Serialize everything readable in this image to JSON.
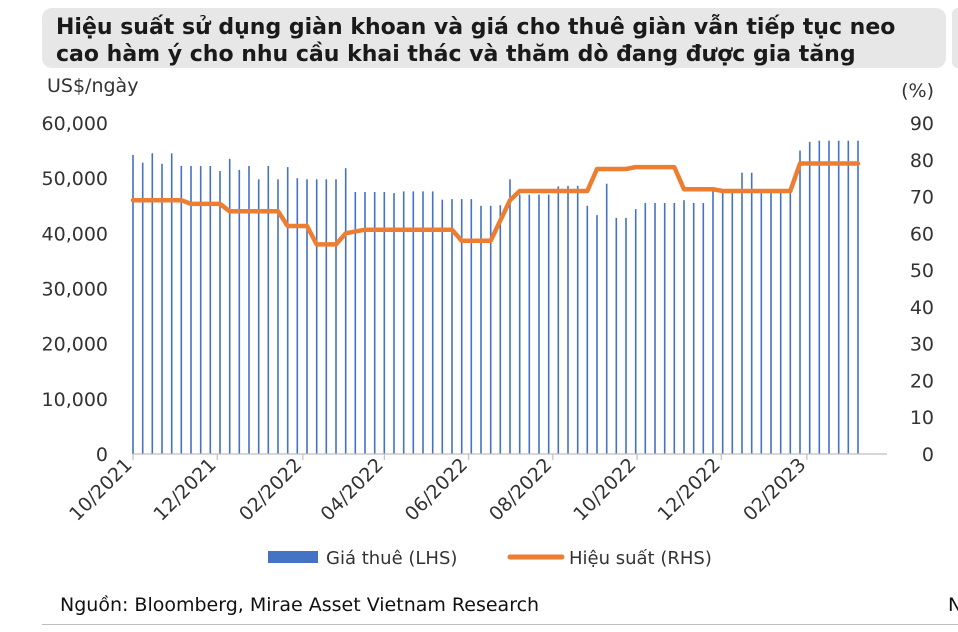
{
  "title": "Hiệu suất sử dụng giàn khoan và giá cho thuê giàn vẫn tiếp tục neo cao hàm ý cho nhu cầu khai thác và thăm dò đang được gia tăng",
  "source": "Nguồn: Bloomberg, Mirae Asset Vietnam Research",
  "source_truncated": "N",
  "colors": {
    "bar": "#4472c4",
    "line": "#ed7d31",
    "axis": "#bfbfbf"
  },
  "chart_data": {
    "type": "bar",
    "y_left_label": "US$/ngày",
    "y_right_label": "(%)",
    "y_left_ticks": [
      "0",
      "10,000",
      "20,000",
      "30,000",
      "40,000",
      "50,000",
      "60,000"
    ],
    "y_right_ticks": [
      "0",
      "10",
      "20",
      "30",
      "40",
      "50",
      "60",
      "70",
      "80",
      "90"
    ],
    "ylim_left": [
      0,
      60000
    ],
    "ylim_right": [
      0,
      90
    ],
    "x_tick_labels": [
      "10/2021",
      "12/2021",
      "02/2022",
      "04/2022",
      "06/2022",
      "08/2022",
      "10/2022",
      "12/2022",
      "02/2023"
    ],
    "x_range": [
      "2021-10-01",
      "2023-03-31"
    ],
    "legend_position": "bottom",
    "series": [
      {
        "name": "Giá thuê (LHS)",
        "type": "bar",
        "axis": "left",
        "x": [
          "2021-10-01",
          "2021-10-08",
          "2021-10-15",
          "2021-10-22",
          "2021-10-29",
          "2021-11-05",
          "2021-11-12",
          "2021-11-19",
          "2021-11-26",
          "2021-12-03",
          "2021-12-10",
          "2021-12-17",
          "2021-12-24",
          "2021-12-31",
          "2022-01-07",
          "2022-01-14",
          "2022-01-21",
          "2022-01-28",
          "2022-02-04",
          "2022-02-11",
          "2022-02-18",
          "2022-02-25",
          "2022-03-04",
          "2022-03-11",
          "2022-03-18",
          "2022-03-25",
          "2022-04-01",
          "2022-04-08",
          "2022-04-15",
          "2022-04-22",
          "2022-04-29",
          "2022-05-06",
          "2022-05-13",
          "2022-05-20",
          "2022-05-27",
          "2022-06-03",
          "2022-06-10",
          "2022-06-17",
          "2022-06-24",
          "2022-07-01",
          "2022-07-08",
          "2022-07-15",
          "2022-07-22",
          "2022-07-29",
          "2022-08-05",
          "2022-08-12",
          "2022-08-19",
          "2022-08-26",
          "2022-09-02",
          "2022-09-09",
          "2022-09-16",
          "2022-09-23",
          "2022-09-30",
          "2022-10-07",
          "2022-10-14",
          "2022-10-21",
          "2022-10-28",
          "2022-11-04",
          "2022-11-11",
          "2022-11-18",
          "2022-11-25",
          "2022-12-02",
          "2022-12-09",
          "2022-12-16",
          "2022-12-23",
          "2022-12-30",
          "2023-01-06",
          "2023-01-13",
          "2023-01-20",
          "2023-01-27",
          "2023-02-03",
          "2023-02-10",
          "2023-02-17",
          "2023-02-24",
          "2023-03-03",
          "2023-03-10"
        ],
        "values": [
          54200,
          52800,
          54500,
          52600,
          54500,
          52200,
          52200,
          52200,
          52200,
          51300,
          53500,
          51500,
          52200,
          49800,
          52200,
          49800,
          52000,
          50000,
          49800,
          49800,
          49800,
          49800,
          51800,
          47500,
          47500,
          47500,
          47500,
          47300,
          47600,
          47600,
          47600,
          47600,
          46100,
          46200,
          46200,
          46200,
          45000,
          45000,
          45100,
          49800,
          47000,
          47000,
          47000,
          47000,
          48500,
          48600,
          48600,
          45000,
          43300,
          49000,
          42800,
          42800,
          44400,
          45500,
          45500,
          45500,
          45500,
          46000,
          45500,
          45500,
          47800,
          48000,
          48000,
          51000,
          51000,
          48000,
          48000,
          48000,
          48500,
          55000,
          56600,
          56800,
          56800,
          56800,
          56800,
          56800
        ]
      },
      {
        "name": "Hiệu suất (RHS)",
        "type": "line",
        "axis": "right",
        "x": [
          "2021-10-01",
          "2021-11-05",
          "2021-11-12",
          "2021-12-03",
          "2021-12-10",
          "2022-01-14",
          "2022-01-21",
          "2022-02-04",
          "2022-02-11",
          "2022-02-25",
          "2022-03-04",
          "2022-03-18",
          "2022-03-25",
          "2022-05-20",
          "2022-05-27",
          "2022-06-10",
          "2022-06-17",
          "2022-07-01",
          "2022-07-08",
          "2022-08-26",
          "2022-09-02",
          "2022-09-23",
          "2022-09-30",
          "2022-10-28",
          "2022-11-04",
          "2022-11-25",
          "2022-12-02",
          "2023-01-20",
          "2023-01-27",
          "2023-03-10"
        ],
        "values": [
          69,
          69,
          68,
          68,
          66,
          66,
          62,
          62,
          57,
          57,
          60,
          61,
          61,
          61,
          58,
          58,
          58,
          69,
          71.5,
          71.5,
          77.5,
          77.5,
          78,
          78,
          72,
          72,
          71.5,
          71.5,
          79,
          79
        ]
      }
    ]
  }
}
